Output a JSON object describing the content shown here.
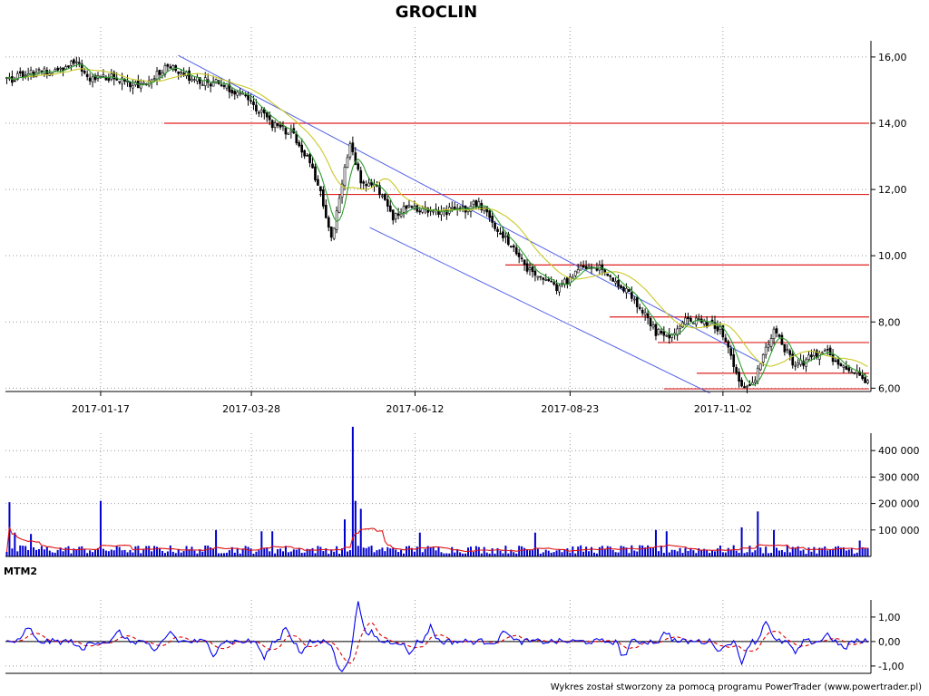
{
  "chart_data": [
    {
      "type": "candlestick",
      "title": "GROCLIN",
      "x_dates": [
        "2017-01-17",
        "2017-03-28",
        "2017-06-12",
        "2017-08-23",
        "2017-11-02"
      ],
      "y_ticks": [
        "6,00",
        "8,00",
        "10,00",
        "12,00",
        "14,00",
        "16,00"
      ],
      "ylim": [
        5.9,
        16.9
      ],
      "price_path": [
        [
          0,
          15.3
        ],
        [
          10,
          15.5
        ],
        [
          20,
          15.6
        ],
        [
          26,
          15.9
        ],
        [
          30,
          15.3
        ],
        [
          40,
          15.4
        ],
        [
          50,
          15.1
        ],
        [
          60,
          15.7
        ],
        [
          70,
          15.3
        ],
        [
          80,
          15.2
        ],
        [
          88,
          14.8
        ],
        [
          96,
          14.2
        ],
        [
          100,
          13.9
        ],
        [
          106,
          13.7
        ],
        [
          112,
          13.0
        ],
        [
          118,
          11.6
        ],
        [
          121,
          10.5
        ],
        [
          124,
          11.8
        ],
        [
          128,
          13.3
        ],
        [
          132,
          12.3
        ],
        [
          138,
          12.1
        ],
        [
          144,
          11.2
        ],
        [
          150,
          11.5
        ],
        [
          160,
          11.3
        ],
        [
          170,
          11.4
        ],
        [
          176,
          11.6
        ],
        [
          182,
          10.9
        ],
        [
          188,
          10.3
        ],
        [
          194,
          9.6
        ],
        [
          200,
          9.4
        ],
        [
          206,
          9.0
        ],
        [
          212,
          9.5
        ],
        [
          218,
          9.7
        ],
        [
          224,
          9.5
        ],
        [
          230,
          9.0
        ],
        [
          236,
          8.4
        ],
        [
          242,
          7.7
        ],
        [
          248,
          7.6
        ],
        [
          254,
          8.1
        ],
        [
          260,
          8.0
        ],
        [
          266,
          7.8
        ],
        [
          270,
          7.0
        ],
        [
          274,
          6.0
        ],
        [
          278,
          6.1
        ],
        [
          282,
          7.0
        ],
        [
          286,
          7.7
        ],
        [
          290,
          7.2
        ],
        [
          294,
          6.6
        ],
        [
          300,
          7.0
        ],
        [
          306,
          7.1
        ],
        [
          310,
          6.7
        ],
        [
          316,
          6.5
        ],
        [
          320,
          6.2
        ]
      ],
      "moving_average_colors": {
        "short": "#2e9e2e",
        "long": "#c9c926"
      },
      "resistance_levels": [
        14.0,
        11.85,
        9.72,
        8.15,
        7.38,
        6.45,
        5.98
      ],
      "trend_channel": {
        "upper": [
          [
            "2017-02-22",
            16.05
          ],
          [
            "2017-11-20",
            6.75
          ]
        ],
        "lower": [
          [
            "2017-05-22",
            10.85
          ],
          [
            "2017-10-27",
            5.85
          ]
        ]
      }
    },
    {
      "type": "bar",
      "title": "",
      "y_ticks": [
        "100 000",
        "200 000",
        "300 000",
        "400 000"
      ],
      "ylim": [
        0,
        500000
      ],
      "spikes": [
        [
          1,
          205000
        ],
        [
          3,
          90000
        ],
        [
          9,
          85000
        ],
        [
          35,
          210000
        ],
        [
          78,
          100000
        ],
        [
          95,
          95000
        ],
        [
          99,
          95000
        ],
        [
          126,
          140000
        ],
        [
          129,
          490000
        ],
        [
          130,
          210000
        ],
        [
          132,
          180000
        ],
        [
          154,
          90000
        ],
        [
          197,
          90000
        ],
        [
          242,
          100000
        ],
        [
          246,
          95000
        ],
        [
          274,
          110000
        ],
        [
          280,
          170000
        ],
        [
          286,
          100000
        ],
        [
          318,
          60000
        ]
      ],
      "base_volume": 25000,
      "average_color": "#e01010",
      "bar_color": "#0000cc"
    },
    {
      "type": "line",
      "title": "MTM2",
      "y_ticks": [
        "-1,00",
        "0,00",
        "1,00"
      ],
      "ylim": [
        -1.3,
        1.7
      ],
      "series_colors": {
        "momentum": "#0000ee",
        "signal": "#dd0000"
      },
      "events": [
        [
          8,
          0.6
        ],
        [
          28,
          -0.4
        ],
        [
          42,
          0.4
        ],
        [
          55,
          -0.5
        ],
        [
          61,
          0.4
        ],
        [
          77,
          -0.5
        ],
        [
          96,
          -0.7
        ],
        [
          104,
          0.6
        ],
        [
          110,
          -0.5
        ],
        [
          124,
          -1.15
        ],
        [
          127,
          -0.9
        ],
        [
          131,
          1.55
        ],
        [
          136,
          0.4
        ],
        [
          150,
          -0.5
        ],
        [
          158,
          0.6
        ],
        [
          186,
          0.5
        ],
        [
          230,
          -0.6
        ],
        [
          246,
          0.4
        ],
        [
          266,
          -0.4
        ],
        [
          274,
          -0.8
        ],
        [
          283,
          0.9
        ],
        [
          294,
          -0.5
        ],
        [
          306,
          0.3
        ],
        [
          312,
          -0.3
        ]
      ]
    }
  ],
  "footer": "Wykres został stworzony za pomocą programu PowerTrader (www.powertrader.pl)"
}
